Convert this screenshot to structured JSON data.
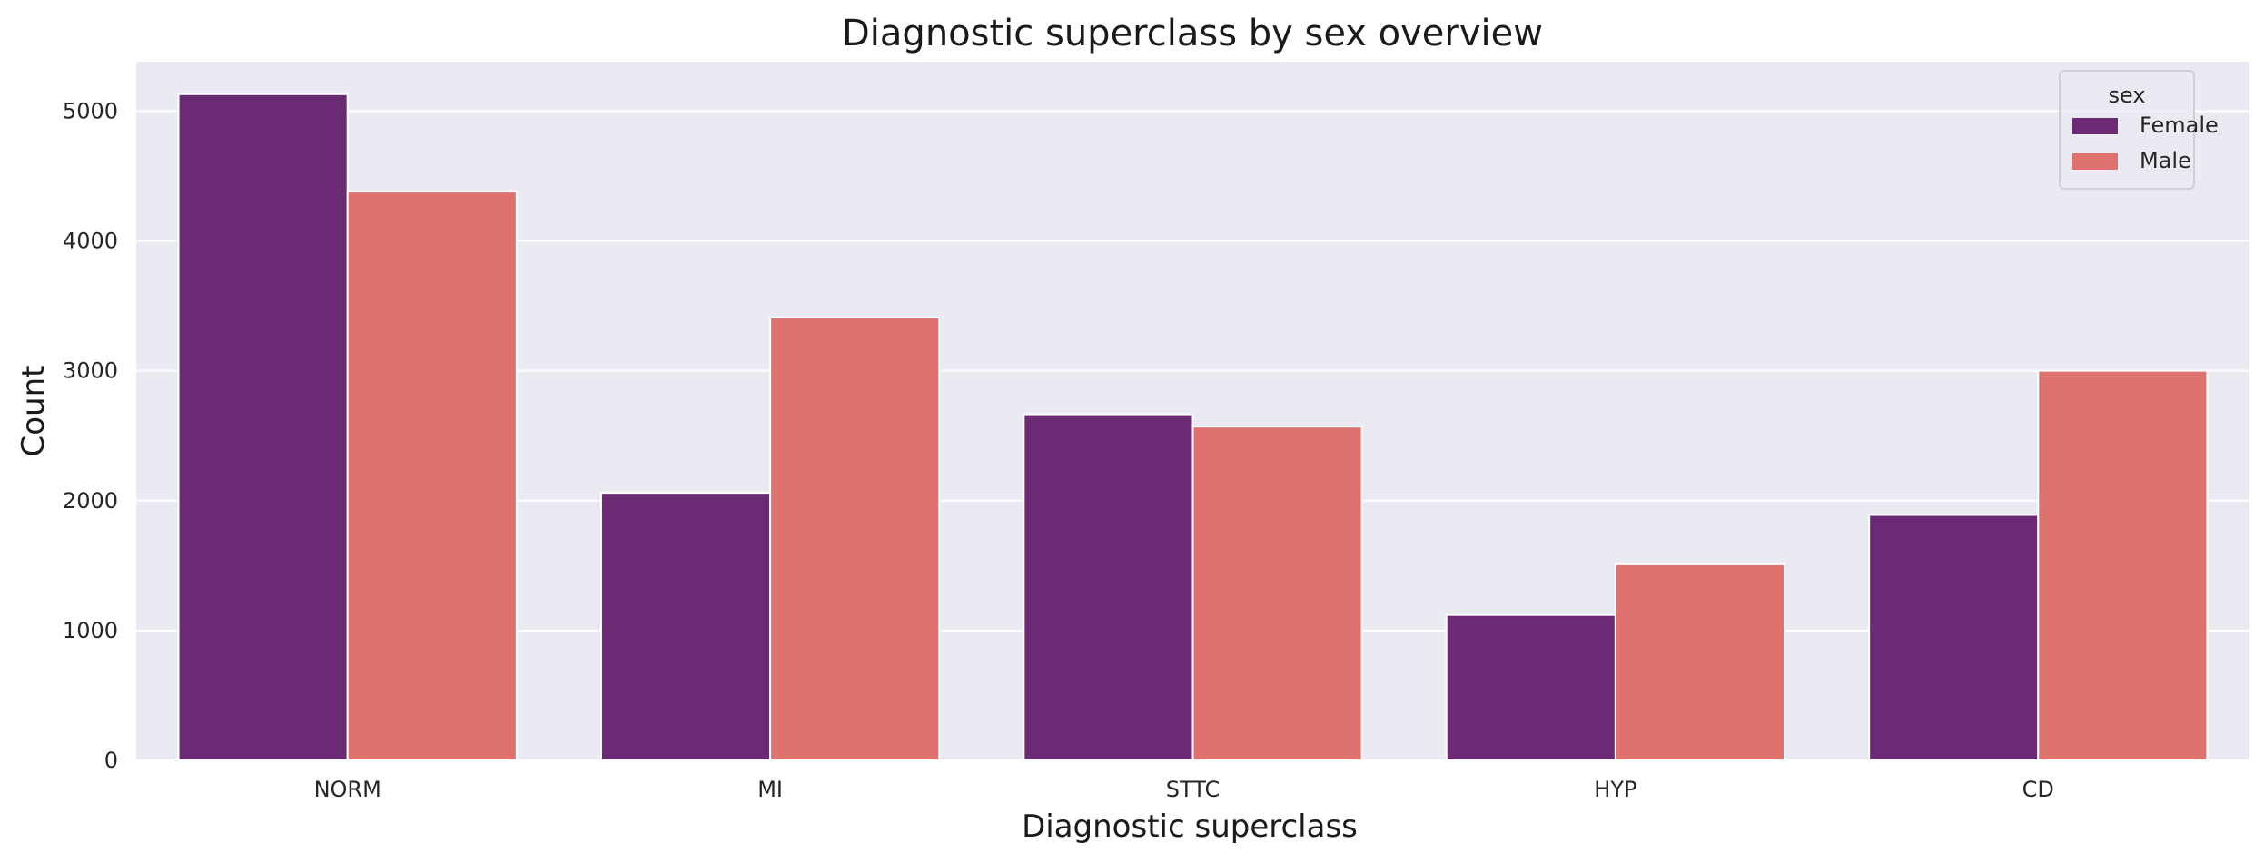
{
  "chart_data": {
    "type": "bar",
    "title": "Diagnostic superclass by sex overview",
    "xlabel": "Diagnostic superclass",
    "ylabel": "Count",
    "categories": [
      "NORM",
      "MI",
      "STTC",
      "HYP",
      "CD"
    ],
    "series": [
      {
        "name": "Female",
        "color": "#6a2a74",
        "values": [
          5130,
          2060,
          2665,
          1120,
          1890
        ]
      },
      {
        "name": "Male",
        "color": "#df726f",
        "values": [
          4380,
          3410,
          2570,
          1510,
          3000
        ]
      }
    ],
    "ylim": [
      0,
      5380
    ],
    "yticks": [
      0,
      1000,
      2000,
      3000,
      4000,
      5000
    ],
    "grid": true,
    "legend": {
      "title": "sex",
      "placement": "top-right"
    },
    "background": "#eaeaf2",
    "grid_color": "#ffffff"
  }
}
